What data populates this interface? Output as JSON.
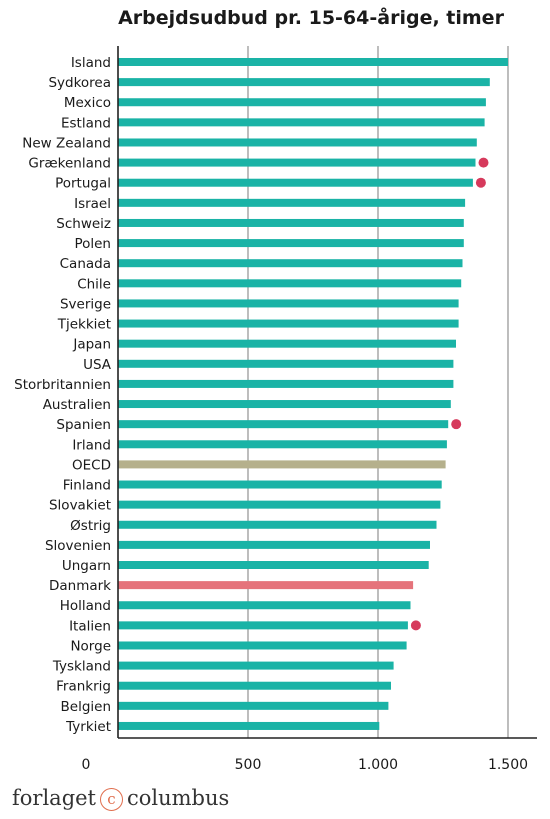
{
  "chart_data": {
    "type": "bar",
    "orientation": "horizontal",
    "title": "Arbejdsudbud pr. 15-64-årige, timer",
    "categories": [
      "Island",
      "Sydkorea",
      "Mexico",
      "Estland",
      "New Zealand",
      "Grækenland",
      "Portugal",
      "Israel",
      "Schweiz",
      "Polen",
      "Canada",
      "Chile",
      "Sverige",
      "Tjekkiet",
      "Japan",
      "USA",
      "Storbritannien",
      "Australien",
      "Spanien",
      "Irland",
      "OECD",
      "Finland",
      "Slovakiet",
      "Østrig",
      "Slovenien",
      "Ungarn",
      "Danmark",
      "Holland",
      "Italien",
      "Norge",
      "Tyskland",
      "Frankrig",
      "Belgien",
      "Tyrkiet"
    ],
    "values": [
      1500,
      1430,
      1415,
      1410,
      1380,
      1375,
      1365,
      1335,
      1330,
      1330,
      1325,
      1320,
      1310,
      1310,
      1300,
      1290,
      1290,
      1280,
      1270,
      1265,
      1260,
      1245,
      1240,
      1225,
      1200,
      1195,
      1135,
      1125,
      1115,
      1110,
      1060,
      1050,
      1040,
      1005
    ],
    "highlights": {
      "OECD": "#b5b08c",
      "Danmark": "#e5737b"
    },
    "markers": [
      "Grækenland",
      "Portugal",
      "Spanien",
      "Italien"
    ],
    "bar_color": "#1ab3a6",
    "marker_color": "#d63a5c",
    "xlim": [
      0,
      1600
    ],
    "xticks": [
      0,
      500,
      1000,
      1500
    ],
    "xtick_labels": [
      "0",
      "500",
      "1.000",
      "1.500"
    ],
    "grid": true,
    "legend": "none"
  },
  "footer": {
    "brand_left": "forlaget",
    "brand_mark": "c",
    "brand_right": "columbus"
  }
}
